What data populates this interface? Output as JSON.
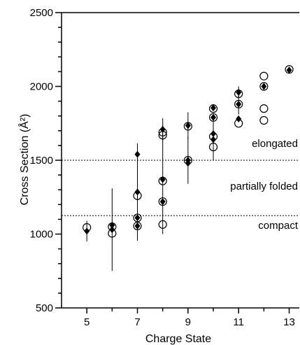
{
  "chart_data": {
    "type": "scatter",
    "xlabel": "Charge State",
    "ylabel": "Cross Section (Å²)",
    "xlim": [
      4,
      13.4
    ],
    "ylim": [
      500,
      2500
    ],
    "x_ticks": [
      5,
      7,
      9,
      11,
      13
    ],
    "y_ticks": [
      500,
      1000,
      1500,
      2000,
      2500
    ],
    "grid": false,
    "legend": "none",
    "reference_lines": [
      {
        "y": 1500,
        "style": "dotted"
      },
      {
        "y": 1125,
        "style": "dotted"
      }
    ],
    "region_labels": [
      {
        "text": "elongated",
        "x": 13.4,
        "y": 1590
      },
      {
        "text": "partially folded",
        "x": 13.4,
        "y": 1300
      },
      {
        "text": "compact",
        "x": 13.4,
        "y": 1035
      }
    ],
    "series": [
      {
        "marker": "filled-diamond",
        "color": "#000000",
        "points": [
          {
            "x": 5,
            "y": 1020,
            "err": 70
          },
          {
            "x": 6,
            "y": 1030,
            "err": 280
          },
          {
            "x": 6,
            "y": 1060
          },
          {
            "x": 7,
            "y": 1540
          },
          {
            "x": 7,
            "y": 1285,
            "err": 330
          },
          {
            "x": 7,
            "y": 1110
          },
          {
            "x": 7,
            "y": 1055
          },
          {
            "x": 8,
            "y": 1710,
            "err": 75
          },
          {
            "x": 8,
            "y": 1370,
            "err": 370
          },
          {
            "x": 8,
            "y": 1220
          },
          {
            "x": 9,
            "y": 1735,
            "err": 90
          },
          {
            "x": 9,
            "y": 1500,
            "err": 160
          },
          {
            "x": 9,
            "y": 1480
          },
          {
            "x": 10,
            "y": 1855
          },
          {
            "x": 10,
            "y": 1790
          },
          {
            "x": 10,
            "y": 1680
          },
          {
            "x": 10,
            "y": 1640,
            "err": 140
          },
          {
            "x": 11,
            "y": 1960,
            "err": 40
          },
          {
            "x": 11,
            "y": 1880,
            "err": 70
          },
          {
            "x": 11,
            "y": 1780
          },
          {
            "x": 12,
            "y": 2000
          },
          {
            "x": 13,
            "y": 2110
          }
        ]
      },
      {
        "marker": "open-circle",
        "color": "#000000",
        "points": [
          {
            "x": 5,
            "y": 1045
          },
          {
            "x": 6,
            "y": 1005
          },
          {
            "x": 6,
            "y": 1050
          },
          {
            "x": 7,
            "y": 1260
          },
          {
            "x": 7,
            "y": 1110
          },
          {
            "x": 7,
            "y": 1055
          },
          {
            "x": 8,
            "y": 1690
          },
          {
            "x": 8,
            "y": 1670
          },
          {
            "x": 8,
            "y": 1360
          },
          {
            "x": 8,
            "y": 1220
          },
          {
            "x": 8,
            "y": 1065
          },
          {
            "x": 9,
            "y": 1730
          },
          {
            "x": 9,
            "y": 1500
          },
          {
            "x": 10,
            "y": 1850
          },
          {
            "x": 10,
            "y": 1790
          },
          {
            "x": 10,
            "y": 1660
          },
          {
            "x": 10,
            "y": 1590
          },
          {
            "x": 11,
            "y": 1950
          },
          {
            "x": 11,
            "y": 1880
          },
          {
            "x": 11,
            "y": 1750
          },
          {
            "x": 12,
            "y": 2070
          },
          {
            "x": 12,
            "y": 2000
          },
          {
            "x": 12,
            "y": 1850
          },
          {
            "x": 12,
            "y": 1770
          },
          {
            "x": 13,
            "y": 2115
          }
        ]
      }
    ]
  }
}
